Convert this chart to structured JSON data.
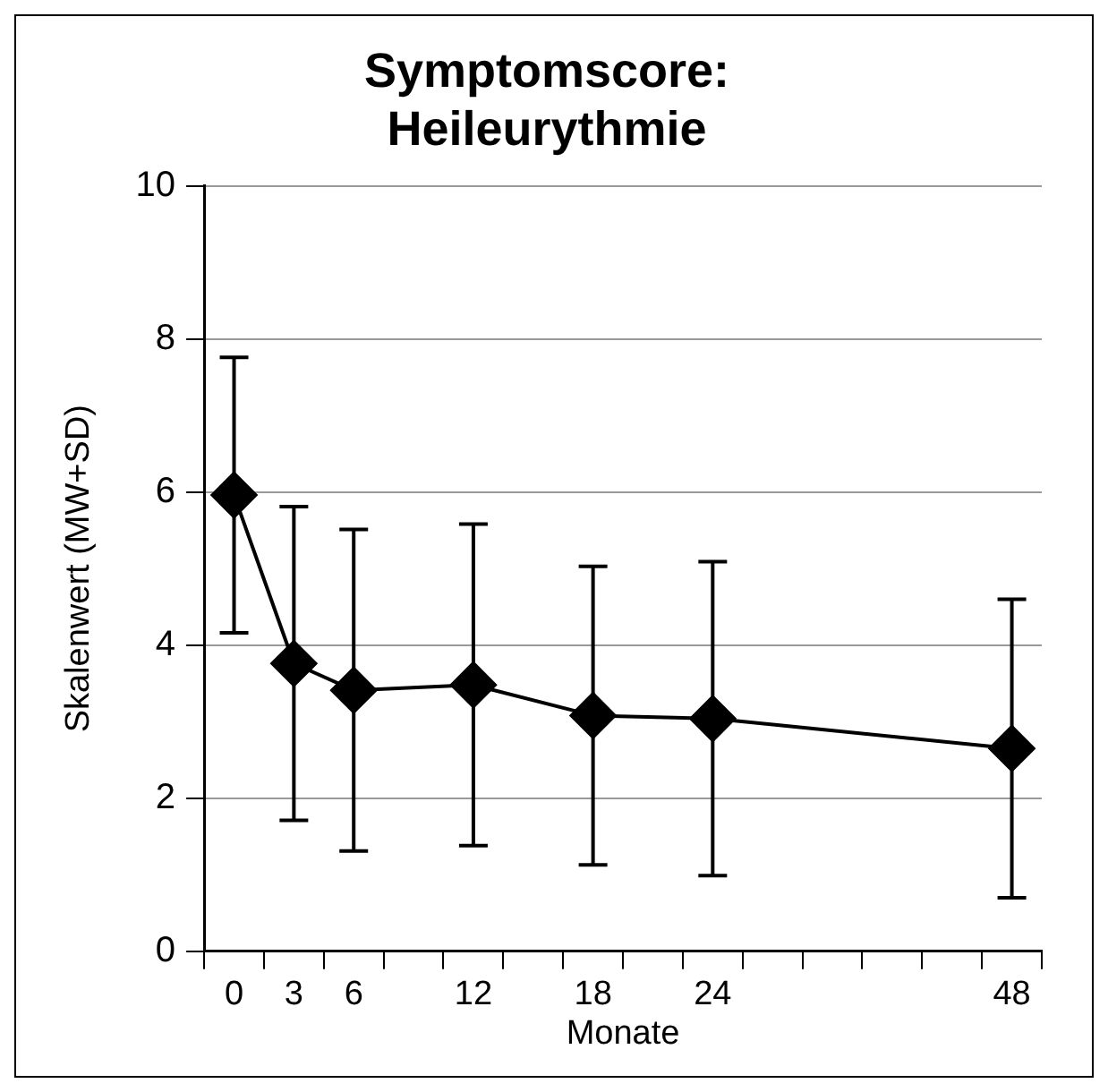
{
  "chart_data": {
    "type": "line",
    "title": "Symptomscore:\nHeileurythmie",
    "xlabel": "Monate",
    "ylabel": "Skalenwert (MW+SD)",
    "categories": [
      "0",
      "3",
      "6",
      null,
      "12",
      null,
      "18",
      null,
      "24",
      null,
      null,
      null,
      null,
      "48"
    ],
    "series": [
      {
        "color": "#000000",
        "values": [
          5.96,
          3.76,
          3.41,
          null,
          3.48,
          null,
          3.08,
          null,
          3.04,
          null,
          null,
          null,
          null,
          2.65
        ],
        "errors": [
          1.8,
          2.05,
          2.1,
          null,
          2.1,
          null,
          1.95,
          null,
          2.05,
          null,
          null,
          null,
          null,
          1.95
        ]
      }
    ],
    "ylim": [
      0,
      10
    ],
    "yticks": [
      0,
      2,
      4,
      6,
      8,
      10
    ],
    "grid": "y",
    "legend": false,
    "marker": "diamond",
    "line_style": "solid"
  }
}
